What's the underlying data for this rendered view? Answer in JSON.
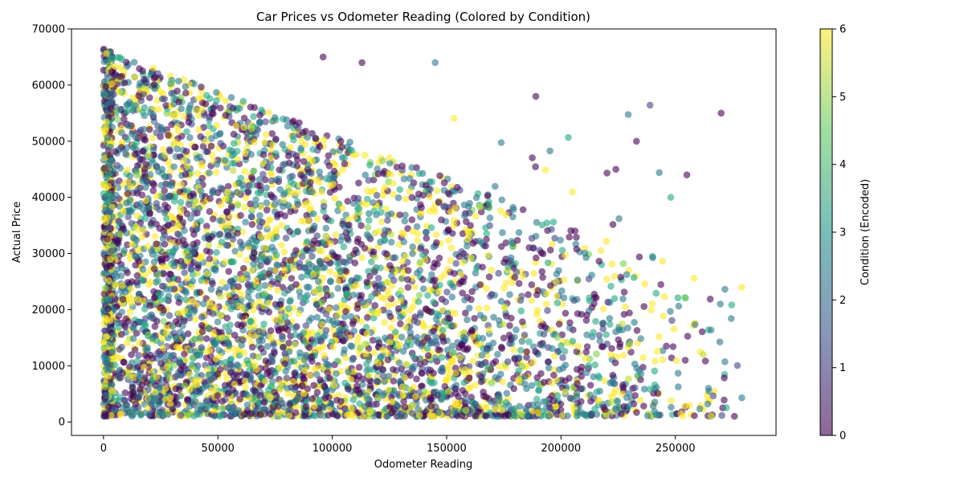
{
  "chart_data": {
    "type": "scatter",
    "title": "Car Prices vs Odometer Reading (Colored by Condition)",
    "xlabel": "Odometer Reading",
    "ylabel": "Actual Price",
    "xlim": [
      -14000,
      294000
    ],
    "ylim": [
      -2400,
      70000
    ],
    "xticks": [
      0,
      50000,
      100000,
      150000,
      200000,
      250000
    ],
    "xtick_labels": [
      "0",
      "50000",
      "100000",
      "150000",
      "200000",
      "250000"
    ],
    "yticks": [
      0,
      10000,
      20000,
      30000,
      40000,
      50000,
      60000,
      70000
    ],
    "ytick_labels": [
      "0",
      "10000",
      "20000",
      "30000",
      "40000",
      "50000",
      "60000",
      "70000"
    ],
    "grid": false,
    "point_alpha": 0.6,
    "colorbar": {
      "label": "Condition (Encoded)",
      "min": 0,
      "max": 6,
      "ticks": [
        0,
        1,
        2,
        3,
        4,
        5,
        6
      ],
      "tick_labels": [
        "0",
        "1",
        "2",
        "3",
        "4",
        "5",
        "6"
      ],
      "colormap": "viridis",
      "stops": [
        "#440154",
        "#3b528b",
        "#21918c",
        "#5ec962",
        "#fde725"
      ],
      "category_colors": [
        "#440154",
        "#414487",
        "#2a788e",
        "#22a884",
        "#7ad151",
        "#bddf26",
        "#fde725"
      ],
      "category_weights": [
        0.3,
        0.1,
        0.28,
        0.12,
        0.02,
        0.02,
        0.28
      ]
    },
    "sample_points": [
      {
        "x": 270000,
        "y": 55000,
        "c": 0
      },
      {
        "x": 233000,
        "y": 50000,
        "c": 0
      },
      {
        "x": 255000,
        "y": 44000,
        "c": 0
      },
      {
        "x": 145000,
        "y": 64000,
        "c": 2
      },
      {
        "x": 189000,
        "y": 58000,
        "c": 0
      },
      {
        "x": 248000,
        "y": 40000,
        "c": 3
      },
      {
        "x": 279000,
        "y": 24000,
        "c": 6
      },
      {
        "x": 224000,
        "y": 45000,
        "c": 0
      },
      {
        "x": 96000,
        "y": 65000,
        "c": 0
      },
      {
        "x": 113000,
        "y": 64000,
        "c": 0
      }
    ]
  }
}
